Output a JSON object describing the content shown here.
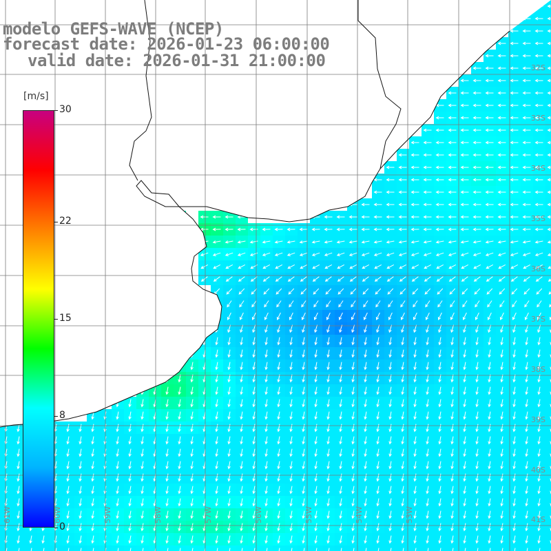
{
  "header": {
    "model": "modelo GEFS-WAVE (NCEP)",
    "forecast_date": "forecast date: 2026-01-23 06:00:00",
    "valid_date": "valid date: 2026-01-31 21:00:00"
  },
  "colorbar": {
    "unit": "[m/s]",
    "ticks": [
      "30",
      "22",
      "15",
      "8",
      "0"
    ],
    "range": [
      0,
      30
    ],
    "colors": [
      "#0000ff",
      "#00b4ff",
      "#00ffff",
      "#00ff00",
      "#ffff00",
      "#ff8000",
      "#ff0000",
      "#c80080"
    ]
  },
  "map": {
    "field": "wind speed",
    "wind_direction": "from NE toward SW",
    "land_color": "#ffffff",
    "grid_color": "#7a7a7a",
    "arrow_color": "#ffffff",
    "lat_labels": [
      "32S",
      "33S",
      "34S",
      "35S",
      "36S",
      "37S",
      "38S",
      "39S",
      "40S",
      "41S"
    ],
    "lon_labels": [
      "61W",
      "60W",
      "59W",
      "58W",
      "57W",
      "56W",
      "55W",
      "54W",
      "53W"
    ]
  }
}
